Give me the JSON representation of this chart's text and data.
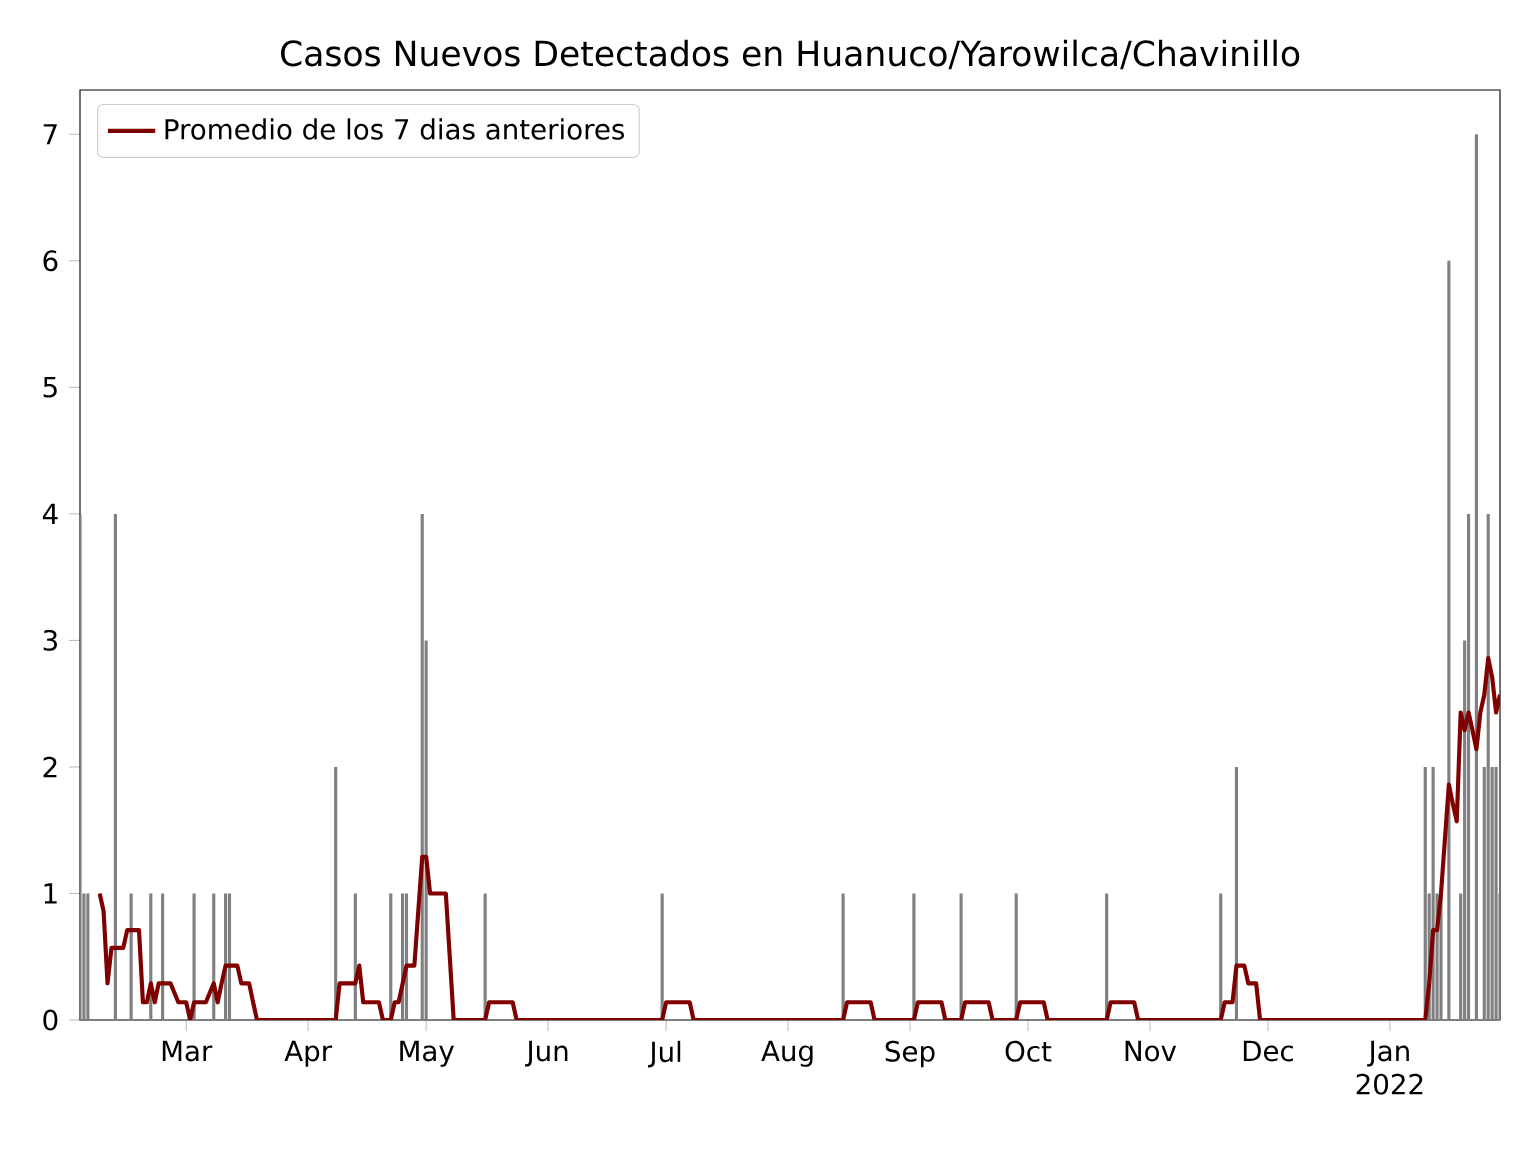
{
  "chart_data": {
    "type": "bar",
    "title": "Casos Nuevos Detectados en Huanuco/Yarowilca/Chavinillo",
    "xlim": [
      "2021-02-02",
      "2022-01-29"
    ],
    "ylim": [
      0,
      7.35
    ],
    "yticks": [
      0,
      1,
      2,
      3,
      4,
      5,
      6,
      7
    ],
    "xticks": [
      {
        "value": "2021-03-01",
        "label": "Mar"
      },
      {
        "value": "2021-04-01",
        "label": "Apr"
      },
      {
        "value": "2021-05-01",
        "label": "May"
      },
      {
        "value": "2021-06-01",
        "label": "Jun"
      },
      {
        "value": "2021-07-01",
        "label": "Jul"
      },
      {
        "value": "2021-08-01",
        "label": "Aug"
      },
      {
        "value": "2021-09-01",
        "label": "Sep"
      },
      {
        "value": "2021-10-01",
        "label": "Oct"
      },
      {
        "value": "2021-11-01",
        "label": "Nov"
      },
      {
        "value": "2021-12-01",
        "label": "Dec"
      },
      {
        "value": "2022-01-01",
        "label": "Jan 2022"
      }
    ],
    "legend": "top left",
    "series": [
      {
        "color": "#808080",
        "x": [
          "2021-02-02",
          "2021-02-03",
          "2021-02-04",
          "2021-02-11",
          "2021-02-15",
          "2021-02-20",
          "2021-02-23",
          "2021-03-03",
          "2021-03-08",
          "2021-03-11",
          "2021-03-12",
          "2021-04-08",
          "2021-04-13",
          "2021-04-22",
          "2021-04-25",
          "2021-04-26",
          "2021-04-30",
          "2021-05-01",
          "2021-05-16",
          "2021-06-30",
          "2021-08-15",
          "2021-09-02",
          "2021-09-14",
          "2021-09-28",
          "2021-10-21",
          "2021-11-19",
          "2021-11-23",
          "2022-01-10",
          "2022-01-11",
          "2022-01-12",
          "2022-01-13",
          "2022-01-14",
          "2022-01-16",
          "2022-01-19",
          "2022-01-20",
          "2022-01-21",
          "2022-01-23",
          "2022-01-25",
          "2022-01-26",
          "2022-01-27",
          "2022-01-28",
          "2022-01-29"
        ],
        "values": [
          4,
          1,
          1,
          4,
          1,
          1,
          1,
          1,
          1,
          1,
          1,
          2,
          1,
          1,
          1,
          1,
          4,
          3,
          1,
          1,
          1,
          1,
          1,
          1,
          1,
          1,
          2,
          2,
          1,
          2,
          1,
          1,
          6,
          1,
          3,
          4,
          7,
          2,
          4,
          2,
          2,
          1
        ]
      },
      {
        "type": "line",
        "name": "Promedio de los 7 dias anteriores",
        "color": "#800000",
        "x": [
          "2021-02-07",
          "2021-02-08",
          "2021-02-09",
          "2021-02-10",
          "2021-02-13",
          "2021-02-14",
          "2021-02-17",
          "2021-02-18",
          "2021-02-19",
          "2021-02-20",
          "2021-02-21",
          "2021-02-22",
          "2021-02-25",
          "2021-02-27",
          "2021-03-01",
          "2021-03-02",
          "2021-03-03",
          "2021-03-06",
          "2021-03-08",
          "2021-03-09",
          "2021-03-10",
          "2021-03-11",
          "2021-03-14",
          "2021-03-15",
          "2021-03-17",
          "2021-03-18",
          "2021-03-19",
          "2021-04-08",
          "2021-04-09",
          "2021-04-13",
          "2021-04-14",
          "2021-04-15",
          "2021-04-19",
          "2021-04-20",
          "2021-04-22",
          "2021-04-23",
          "2021-04-24",
          "2021-04-26",
          "2021-04-28",
          "2021-04-30",
          "2021-05-01",
          "2021-05-02",
          "2021-05-03",
          "2021-05-06",
          "2021-05-08",
          "2021-05-16",
          "2021-05-17",
          "2021-05-23",
          "2021-05-24",
          "2021-06-30",
          "2021-07-01",
          "2021-07-07",
          "2021-07-08",
          "2021-08-15",
          "2021-08-16",
          "2021-08-22",
          "2021-08-23",
          "2021-09-02",
          "2021-09-03",
          "2021-09-09",
          "2021-09-10",
          "2021-09-14",
          "2021-09-15",
          "2021-09-21",
          "2021-09-22",
          "2021-09-28",
          "2021-09-29",
          "2021-10-05",
          "2021-10-06",
          "2021-10-21",
          "2021-10-22",
          "2021-10-28",
          "2021-10-29",
          "2021-11-19",
          "2021-11-20",
          "2021-11-22",
          "2021-11-23",
          "2021-11-25",
          "2021-11-26",
          "2021-11-28",
          "2021-11-29",
          "2022-01-10",
          "2022-01-11",
          "2022-01-12",
          "2022-01-13",
          "2022-01-14",
          "2022-01-16",
          "2022-01-17",
          "2022-01-18",
          "2022-01-19",
          "2022-01-20",
          "2022-01-21",
          "2022-01-22",
          "2022-01-23",
          "2022-01-24",
          "2022-01-25",
          "2022-01-26",
          "2022-01-27",
          "2022-01-28",
          "2022-01-29"
        ],
        "values": [
          1.0,
          0.86,
          0.29,
          0.57,
          0.57,
          0.71,
          0.71,
          0.14,
          0.14,
          0.29,
          0.14,
          0.29,
          0.29,
          0.14,
          0.14,
          0,
          0.14,
          0.14,
          0.29,
          0.14,
          0.29,
          0.43,
          0.43,
          0.29,
          0.29,
          0.14,
          0,
          0,
          0.29,
          0.29,
          0.43,
          0.14,
          0.14,
          0,
          0,
          0.14,
          0.14,
          0.43,
          0.43,
          1.29,
          1.29,
          1.0,
          1.0,
          1.0,
          0,
          0,
          0.14,
          0.14,
          0,
          0,
          0.14,
          0.14,
          0,
          0,
          0.14,
          0.14,
          0,
          0,
          0.14,
          0.14,
          0,
          0,
          0.14,
          0.14,
          0,
          0,
          0.14,
          0.14,
          0,
          0,
          0.14,
          0.14,
          0,
          0,
          0.14,
          0.14,
          0.43,
          0.43,
          0.29,
          0.29,
          0,
          0,
          0.29,
          0.71,
          0.71,
          1.0,
          1.86,
          1.71,
          1.57,
          2.43,
          2.29,
          2.43,
          2.29,
          2.14,
          2.43,
          2.57,
          2.86,
          2.71,
          2.43,
          2.57
        ]
      }
    ]
  }
}
